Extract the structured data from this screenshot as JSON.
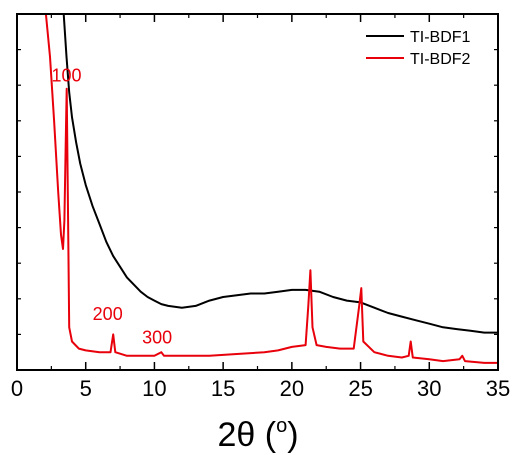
{
  "chart_data": {
    "type": "line",
    "xlabel_main": "2θ (",
    "xlabel_sup": "o",
    "xlabel_close": ")",
    "ylabel": "",
    "xlim": [
      0,
      35
    ],
    "ylim": [
      0,
      100
    ],
    "x_ticks": [
      "0",
      "5",
      "10",
      "15",
      "20",
      "25",
      "30",
      "35"
    ],
    "grid": false,
    "legend_position": "top-right",
    "series": [
      {
        "name": "TI-BDF1",
        "color": "#000000",
        "points": [
          [
            3.4,
            100
          ],
          [
            3.6,
            88
          ],
          [
            3.8,
            78
          ],
          [
            4.0,
            71
          ],
          [
            4.3,
            64
          ],
          [
            4.6,
            58
          ],
          [
            5.0,
            52
          ],
          [
            5.5,
            46
          ],
          [
            6.0,
            41
          ],
          [
            6.5,
            36
          ],
          [
            7.0,
            32
          ],
          [
            7.5,
            29
          ],
          [
            8.0,
            26
          ],
          [
            8.5,
            24
          ],
          [
            9.0,
            22
          ],
          [
            9.5,
            20.5
          ],
          [
            10.0,
            19.5
          ],
          [
            10.5,
            18.5
          ],
          [
            11.0,
            18
          ],
          [
            12.0,
            17.5
          ],
          [
            13.0,
            18
          ],
          [
            14.0,
            19.5
          ],
          [
            15.0,
            20.5
          ],
          [
            16.0,
            21
          ],
          [
            17.0,
            21.5
          ],
          [
            18.0,
            21.5
          ],
          [
            19.0,
            22
          ],
          [
            20.0,
            22.5
          ],
          [
            21.0,
            22.5
          ],
          [
            22.0,
            22
          ],
          [
            23.0,
            20.5
          ],
          [
            24.0,
            19.5
          ],
          [
            25.0,
            19
          ],
          [
            26.0,
            17.5
          ],
          [
            27.0,
            16
          ],
          [
            28.0,
            15
          ],
          [
            29.0,
            14
          ],
          [
            30.0,
            13
          ],
          [
            31.0,
            12
          ],
          [
            32.0,
            11.5
          ],
          [
            33.0,
            11
          ],
          [
            34.0,
            10.5
          ],
          [
            35.0,
            10.5
          ]
        ]
      },
      {
        "name": "TI-BDF2",
        "color": "#e8000b",
        "points": [
          [
            2.1,
            100
          ],
          [
            2.4,
            88
          ],
          [
            2.7,
            70
          ],
          [
            3.0,
            50
          ],
          [
            3.2,
            38
          ],
          [
            3.35,
            34
          ],
          [
            3.45,
            42
          ],
          [
            3.55,
            65
          ],
          [
            3.62,
            79
          ],
          [
            3.7,
            50
          ],
          [
            3.8,
            12
          ],
          [
            4.0,
            8
          ],
          [
            4.5,
            6
          ],
          [
            5.0,
            5.5
          ],
          [
            6.0,
            5
          ],
          [
            6.8,
            5
          ],
          [
            7.0,
            10
          ],
          [
            7.15,
            5
          ],
          [
            8.0,
            4
          ],
          [
            9.0,
            4
          ],
          [
            10.0,
            4
          ],
          [
            10.5,
            5
          ],
          [
            10.7,
            4
          ],
          [
            12.0,
            4
          ],
          [
            14.0,
            4
          ],
          [
            16.0,
            4.5
          ],
          [
            18.0,
            5
          ],
          [
            19.0,
            5.5
          ],
          [
            20.0,
            6.5
          ],
          [
            21.0,
            7
          ],
          [
            21.2,
            18
          ],
          [
            21.35,
            28
          ],
          [
            21.5,
            12
          ],
          [
            21.8,
            7
          ],
          [
            22.5,
            6.5
          ],
          [
            23.5,
            6
          ],
          [
            24.5,
            6
          ],
          [
            24.9,
            18
          ],
          [
            25.05,
            23
          ],
          [
            25.2,
            8
          ],
          [
            26.0,
            5
          ],
          [
            27.0,
            4
          ],
          [
            28.0,
            3.5
          ],
          [
            28.5,
            4
          ],
          [
            28.65,
            8
          ],
          [
            28.8,
            3.5
          ],
          [
            30.0,
            3
          ],
          [
            31.0,
            2.5
          ],
          [
            32.2,
            3
          ],
          [
            32.4,
            4
          ],
          [
            32.6,
            2.5
          ],
          [
            34.0,
            2
          ],
          [
            35.0,
            2
          ]
        ]
      }
    ],
    "annotations": [
      {
        "text": "100",
        "x": 3.6,
        "y": 81
      },
      {
        "text": "200",
        "x": 6.6,
        "y": 14
      },
      {
        "text": "300",
        "x": 10.2,
        "y": 7.5
      }
    ]
  }
}
